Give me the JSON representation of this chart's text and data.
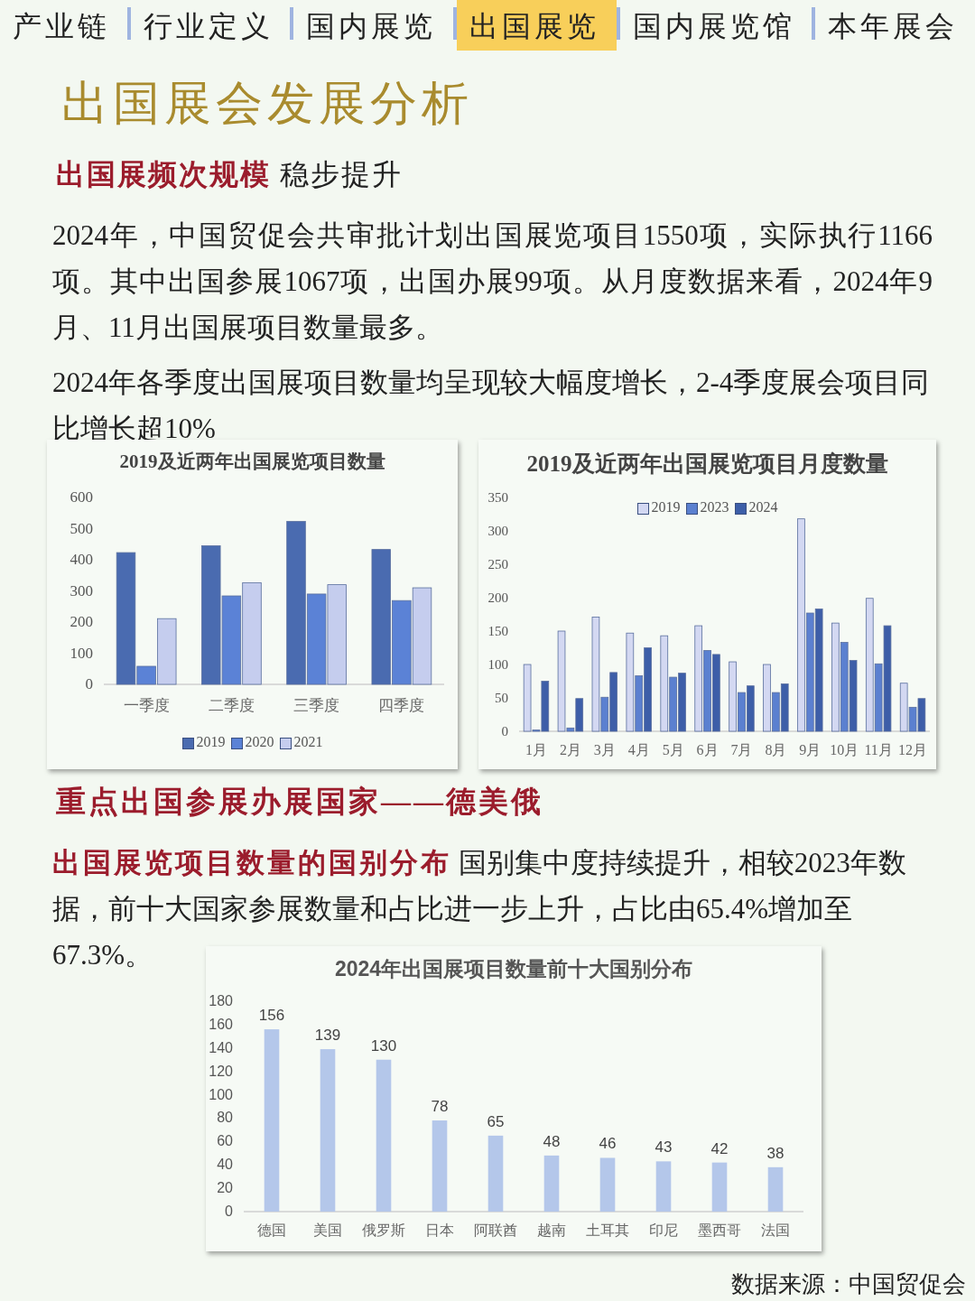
{
  "chart_data": [
    {
      "type": "other",
      "title": "出国展会发展分析",
      "annotations": [
        "产业链",
        "行业定义",
        "国内展览",
        "出国展览",
        "国内展览馆",
        "本年展会",
        "出国展频次规模",
        "稳步提升",
        "2024年，中国贸促会共审批计划出国展览项目1550项，实际执行1166项。其中出国参展1067项，出国办展99项。从月度数据来看，2024年9月、11月出国展项目数量最多。",
        "2024年各季度出国展项目数量均呈现较大幅度增长，2-4季度展会项目同比增长超10%"
      ]
    },
    {
      "type": "bar",
      "title": "2019及近两年出国展览项目数量",
      "categories": [
        "一季度",
        "二季度",
        "三季度",
        "四季度"
      ],
      "ylim": [
        0,
        600
      ],
      "yticks": [
        0,
        100,
        200,
        300,
        400,
        500,
        600
      ],
      "grid": false,
      "legend": "bottom",
      "series": [
        {
          "name": "2019",
          "color": "#4a6bb0",
          "values": [
            423,
            445,
            523,
            433
          ]
        },
        {
          "name": "2020",
          "color": "#5b82d6",
          "values": [
            58,
            284,
            290,
            269
          ]
        },
        {
          "name": "2021",
          "color": "#c5cdee",
          "values": [
            211,
            326,
            320,
            310
          ]
        }
      ]
    },
    {
      "type": "bar",
      "title": "2019及近两年出国展览项目月度数量",
      "categories": [
        "1月",
        "2月",
        "3月",
        "4月",
        "5月",
        "6月",
        "7月",
        "8月",
        "9月",
        "10月",
        "11月",
        "12月"
      ],
      "ylim": [
        0,
        350
      ],
      "yticks": [
        0,
        50,
        100,
        150,
        200,
        250,
        300,
        350
      ],
      "grid": false,
      "legend": "top",
      "series": [
        {
          "name": "2019",
          "color": "#d3d8f2",
          "values": [
            100,
            150,
            171,
            147,
            143,
            158,
            104,
            100,
            318,
            162,
            199,
            72
          ]
        },
        {
          "name": "2023",
          "color": "#5b80d0",
          "values": [
            2,
            5,
            51,
            83,
            81,
            121,
            58,
            58,
            177,
            133,
            101,
            36
          ]
        },
        {
          "name": "2024",
          "color": "#3d5ea8",
          "values": [
            75,
            49,
            88,
            125,
            87,
            115,
            68,
            71,
            183,
            106,
            158,
            49
          ]
        }
      ]
    },
    {
      "type": "other",
      "title": "重点出国参展办展国家——德美俄",
      "annotations": [
        "出国展览项目数量的国别分布",
        "国别集中度持续提升，相较2023年数据，前十大国家参展数量和占比进一步上升，占比由65.4%增加至67.3%。"
      ]
    },
    {
      "type": "bar",
      "title": "2024年出国展项目数量前十大国别分布",
      "categories": [
        "德国",
        "美国",
        "俄罗斯",
        "日本",
        "阿联酋",
        "越南",
        "土耳其",
        "印尼",
        "墨西哥",
        "法国"
      ],
      "values": [
        156,
        139,
        130,
        78,
        65,
        48,
        46,
        43,
        42,
        38
      ],
      "color": "#b4c7ea",
      "data_labels": true,
      "ylim": [
        0,
        180
      ],
      "yticks": [
        0,
        20,
        40,
        60,
        80,
        100,
        120,
        140,
        160,
        180
      ],
      "grid": false,
      "legend": false,
      "annotations": [
        "数据来源：中国贸促会"
      ]
    }
  ]
}
